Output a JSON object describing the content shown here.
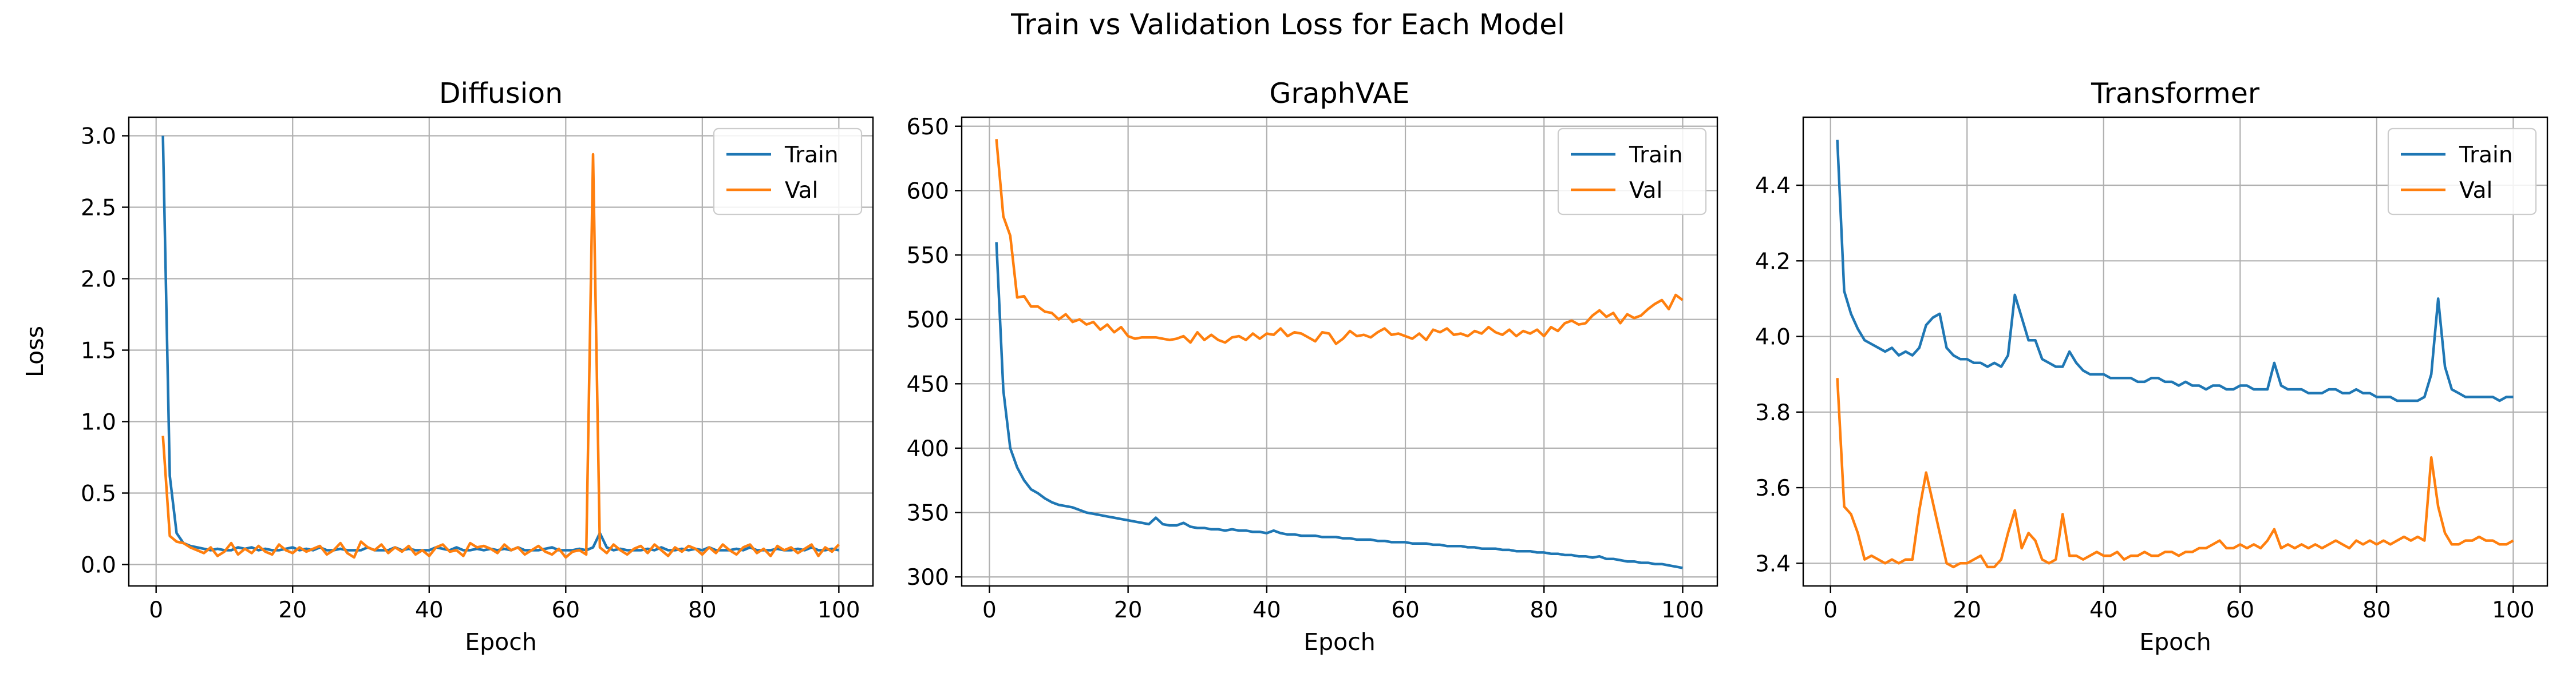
{
  "figure": {
    "suptitle": "Train vs Validation Loss for Each Model"
  },
  "colors": {
    "train": "#1f77b4",
    "val": "#ff7f0e",
    "grid": "#b0b0b0"
  },
  "chart_data": [
    {
      "type": "line",
      "title": "Diffusion",
      "xlabel": "Epoch",
      "ylabel": "Loss",
      "xlim": [
        -4,
        105
      ],
      "ylim": [
        -0.15,
        3.13
      ],
      "xticks": [
        0,
        20,
        40,
        60,
        80,
        100
      ],
      "yticks": [
        0.0,
        0.5,
        1.0,
        1.5,
        2.0,
        2.5,
        3.0
      ],
      "ytick_labels": [
        "0.0",
        "0.5",
        "1.0",
        "1.5",
        "2.0",
        "2.5",
        "3.0"
      ],
      "grid": true,
      "legend": "upper right",
      "series": [
        {
          "name": "Train",
          "values": [
            3.0,
            0.62,
            0.22,
            0.15,
            0.13,
            0.12,
            0.11,
            0.1,
            0.11,
            0.1,
            0.1,
            0.12,
            0.11,
            0.12,
            0.1,
            0.11,
            0.1,
            0.1,
            0.11,
            0.12,
            0.1,
            0.11,
            0.1,
            0.12,
            0.1,
            0.1,
            0.11,
            0.1,
            0.1,
            0.1,
            0.12,
            0.1,
            0.1,
            0.1,
            0.12,
            0.1,
            0.11,
            0.1,
            0.1,
            0.1,
            0.12,
            0.11,
            0.1,
            0.12,
            0.1,
            0.1,
            0.11,
            0.1,
            0.11,
            0.1,
            0.11,
            0.1,
            0.12,
            0.1,
            0.1,
            0.1,
            0.11,
            0.12,
            0.1,
            0.1,
            0.1,
            0.11,
            0.1,
            0.12,
            0.22,
            0.12,
            0.1,
            0.11,
            0.1,
            0.1,
            0.1,
            0.11,
            0.1,
            0.12,
            0.1,
            0.1,
            0.11,
            0.1,
            0.11,
            0.1,
            0.12,
            0.1,
            0.1,
            0.1,
            0.11,
            0.1,
            0.12,
            0.1,
            0.1,
            0.1,
            0.11,
            0.1,
            0.1,
            0.11,
            0.1,
            0.12,
            0.1,
            0.1,
            0.11,
            0.1
          ]
        },
        {
          "name": "Val",
          "values": [
            0.9,
            0.2,
            0.16,
            0.15,
            0.12,
            0.1,
            0.08,
            0.12,
            0.06,
            0.09,
            0.15,
            0.07,
            0.11,
            0.08,
            0.13,
            0.09,
            0.07,
            0.14,
            0.1,
            0.08,
            0.12,
            0.09,
            0.11,
            0.13,
            0.07,
            0.1,
            0.15,
            0.08,
            0.05,
            0.16,
            0.12,
            0.1,
            0.14,
            0.08,
            0.12,
            0.09,
            0.13,
            0.07,
            0.1,
            0.06,
            0.12,
            0.14,
            0.09,
            0.1,
            0.06,
            0.15,
            0.12,
            0.13,
            0.11,
            0.08,
            0.14,
            0.1,
            0.12,
            0.07,
            0.1,
            0.13,
            0.09,
            0.07,
            0.11,
            0.05,
            0.09,
            0.1,
            0.07,
            2.87,
            0.12,
            0.08,
            0.14,
            0.1,
            0.07,
            0.11,
            0.13,
            0.08,
            0.14,
            0.1,
            0.06,
            0.12,
            0.09,
            0.13,
            0.11,
            0.07,
            0.12,
            0.08,
            0.14,
            0.1,
            0.07,
            0.12,
            0.14,
            0.08,
            0.11,
            0.06,
            0.13,
            0.1,
            0.12,
            0.08,
            0.11,
            0.14,
            0.06,
            0.12,
            0.09,
            0.14
          ]
        }
      ]
    },
    {
      "type": "line",
      "title": "GraphVAE",
      "xlabel": "Epoch",
      "ylabel": "",
      "xlim": [
        -4,
        105
      ],
      "ylim": [
        293,
        657
      ],
      "xticks": [
        0,
        20,
        40,
        60,
        80,
        100
      ],
      "yticks": [
        300,
        350,
        400,
        450,
        500,
        550,
        600,
        650
      ],
      "ytick_labels": [
        "300",
        "350",
        "400",
        "450",
        "500",
        "550",
        "600",
        "650"
      ],
      "grid": true,
      "legend": "upper right",
      "series": [
        {
          "name": "Train",
          "values": [
            560,
            445,
            400,
            385,
            375,
            368,
            365,
            361,
            358,
            356,
            355,
            354,
            352,
            350,
            349,
            348,
            347,
            346,
            345,
            344,
            343,
            342,
            341,
            346,
            341,
            340,
            340,
            342,
            339,
            338,
            338,
            337,
            337,
            336,
            337,
            336,
            336,
            335,
            335,
            334,
            336,
            334,
            333,
            333,
            332,
            332,
            332,
            331,
            331,
            331,
            330,
            330,
            329,
            329,
            329,
            328,
            328,
            327,
            327,
            327,
            326,
            326,
            326,
            325,
            325,
            324,
            324,
            324,
            323,
            323,
            322,
            322,
            322,
            321,
            321,
            320,
            320,
            320,
            319,
            319,
            318,
            318,
            317,
            317,
            316,
            316,
            315,
            316,
            314,
            314,
            313,
            312,
            312,
            311,
            311,
            310,
            310,
            309,
            308,
            307
          ]
        },
        {
          "name": "Val",
          "values": [
            640,
            580,
            565,
            517,
            518,
            510,
            510,
            506,
            505,
            500,
            504,
            498,
            500,
            496,
            498,
            492,
            496,
            490,
            494,
            487,
            485,
            486,
            486,
            486,
            485,
            484,
            485,
            487,
            482,
            490,
            484,
            488,
            484,
            482,
            486,
            487,
            484,
            489,
            485,
            489,
            488,
            493,
            487,
            490,
            489,
            486,
            483,
            490,
            489,
            481,
            485,
            491,
            487,
            488,
            486,
            490,
            493,
            488,
            489,
            487,
            485,
            489,
            484,
            492,
            490,
            493,
            488,
            489,
            487,
            491,
            489,
            494,
            490,
            488,
            492,
            487,
            491,
            489,
            492,
            487,
            494,
            491,
            497,
            499,
            496,
            497,
            503,
            507,
            502,
            505,
            497,
            504,
            501,
            503,
            508,
            512,
            515,
            508,
            519,
            515
          ]
        }
      ]
    },
    {
      "type": "line",
      "title": "Transformer",
      "xlabel": "Epoch",
      "ylabel": "",
      "xlim": [
        -4,
        105
      ],
      "ylim": [
        3.34,
        4.58
      ],
      "xticks": [
        0,
        20,
        40,
        60,
        80,
        100
      ],
      "yticks": [
        3.4,
        3.6,
        3.8,
        4.0,
        4.2,
        4.4
      ],
      "ytick_labels": [
        "3.4",
        "3.6",
        "3.8",
        "4.0",
        "4.2",
        "4.4"
      ],
      "grid": true,
      "legend": "upper right",
      "series": [
        {
          "name": "Train",
          "values": [
            4.52,
            4.12,
            4.06,
            4.02,
            3.99,
            3.98,
            3.97,
            3.96,
            3.97,
            3.95,
            3.96,
            3.95,
            3.97,
            4.03,
            4.05,
            4.06,
            3.97,
            3.95,
            3.94,
            3.94,
            3.93,
            3.93,
            3.92,
            3.93,
            3.92,
            3.95,
            4.11,
            4.05,
            3.99,
            3.99,
            3.94,
            3.93,
            3.92,
            3.92,
            3.96,
            3.93,
            3.91,
            3.9,
            3.9,
            3.9,
            3.89,
            3.89,
            3.89,
            3.89,
            3.88,
            3.88,
            3.89,
            3.89,
            3.88,
            3.88,
            3.87,
            3.88,
            3.87,
            3.87,
            3.86,
            3.87,
            3.87,
            3.86,
            3.86,
            3.87,
            3.87,
            3.86,
            3.86,
            3.86,
            3.93,
            3.87,
            3.86,
            3.86,
            3.86,
            3.85,
            3.85,
            3.85,
            3.86,
            3.86,
            3.85,
            3.85,
            3.86,
            3.85,
            3.85,
            3.84,
            3.84,
            3.84,
            3.83,
            3.83,
            3.83,
            3.83,
            3.84,
            3.9,
            4.1,
            3.92,
            3.86,
            3.85,
            3.84,
            3.84,
            3.84,
            3.84,
            3.84,
            3.83,
            3.84,
            3.84
          ]
        },
        {
          "name": "Val",
          "values": [
            3.89,
            3.55,
            3.53,
            3.48,
            3.41,
            3.42,
            3.41,
            3.4,
            3.41,
            3.4,
            3.41,
            3.41,
            3.54,
            3.64,
            3.56,
            3.48,
            3.4,
            3.39,
            3.4,
            3.4,
            3.41,
            3.42,
            3.39,
            3.39,
            3.41,
            3.48,
            3.54,
            3.44,
            3.48,
            3.46,
            3.41,
            3.4,
            3.41,
            3.53,
            3.42,
            3.42,
            3.41,
            3.42,
            3.43,
            3.42,
            3.42,
            3.43,
            3.41,
            3.42,
            3.42,
            3.43,
            3.42,
            3.42,
            3.43,
            3.43,
            3.42,
            3.43,
            3.43,
            3.44,
            3.44,
            3.45,
            3.46,
            3.44,
            3.44,
            3.45,
            3.44,
            3.45,
            3.44,
            3.46,
            3.49,
            3.44,
            3.45,
            3.44,
            3.45,
            3.44,
            3.45,
            3.44,
            3.45,
            3.46,
            3.45,
            3.44,
            3.46,
            3.45,
            3.46,
            3.45,
            3.46,
            3.45,
            3.46,
            3.47,
            3.46,
            3.47,
            3.46,
            3.68,
            3.55,
            3.48,
            3.45,
            3.45,
            3.46,
            3.46,
            3.47,
            3.46,
            3.46,
            3.45,
            3.45,
            3.46
          ]
        }
      ]
    }
  ]
}
